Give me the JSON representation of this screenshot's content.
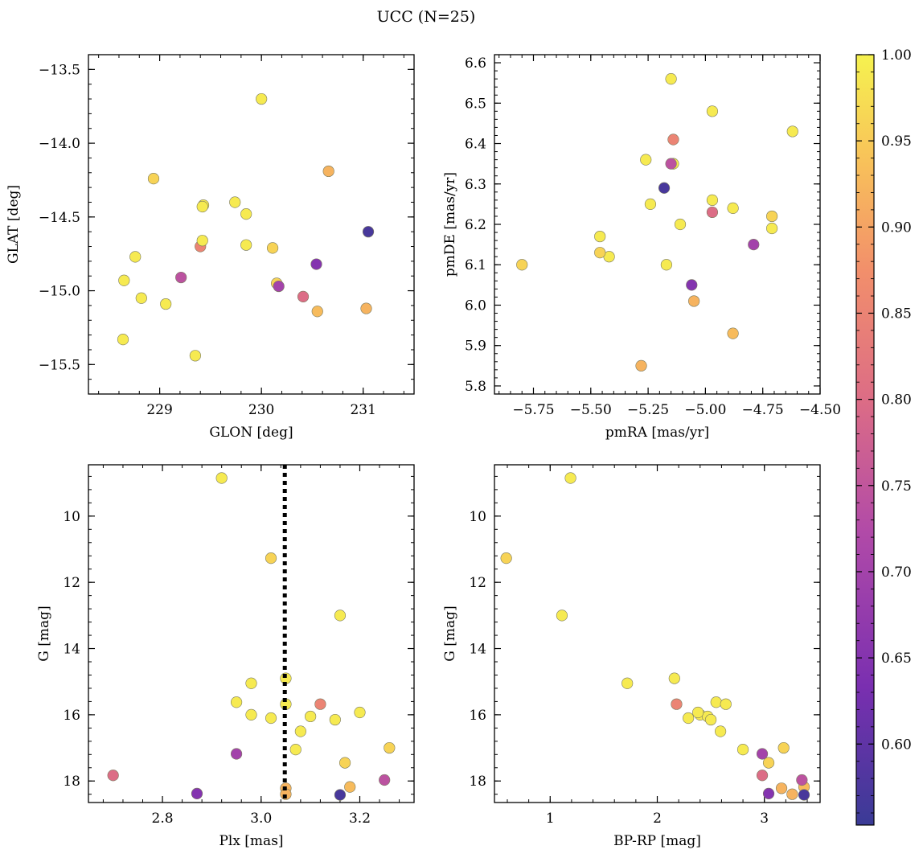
{
  "title": "UCC (N=25)",
  "colorbar": {
    "min": 0.553,
    "max": 1.0,
    "ticks": [
      "0.60",
      "0.65",
      "0.70",
      "0.75",
      "0.80",
      "0.85",
      "0.90",
      "0.95",
      "1.00"
    ],
    "tick_values": [
      0.6,
      0.65,
      0.7,
      0.75,
      0.8,
      0.85,
      0.9,
      0.95,
      1.0
    ],
    "colormap": "plasma"
  },
  "stars": {
    "glon": [
      230.0,
      228.94,
      228.76,
      228.65,
      228.82,
      228.64,
      229.06,
      229.35,
      229.4,
      229.42,
      229.43,
      229.42,
      229.74,
      229.85,
      229.85,
      230.11,
      230.15,
      230.17,
      230.41,
      230.54,
      230.66,
      230.55,
      231.03,
      231.05,
      229.21
    ],
    "glat": [
      -13.7,
      -14.24,
      -14.77,
      -14.93,
      -15.05,
      -15.33,
      -15.09,
      -15.44,
      -14.7,
      -14.66,
      -14.42,
      -14.43,
      -14.4,
      -14.48,
      -14.69,
      -14.71,
      -14.95,
      -14.97,
      -15.04,
      -14.82,
      -14.19,
      -15.14,
      -15.12,
      -14.6,
      -14.91
    ],
    "pmra": [
      -4.71,
      -5.8,
      -5.26,
      -5.24,
      -5.14,
      -4.97,
      -4.62,
      -5.15,
      -5.14,
      -4.97,
      -4.88,
      -5.46,
      -5.42,
      -5.17,
      -5.11,
      -5.46,
      -4.71,
      -4.79,
      -4.97,
      -5.06,
      -5.05,
      -4.88,
      -5.28,
      -5.18,
      -5.15
    ],
    "pmde": [
      6.19,
      6.1,
      6.36,
      6.25,
      6.35,
      6.48,
      6.43,
      6.56,
      6.41,
      6.26,
      6.24,
      6.17,
      6.12,
      6.1,
      6.2,
      6.13,
      6.22,
      6.15,
      6.23,
      6.05,
      6.01,
      5.93,
      5.85,
      6.29,
      6.35
    ],
    "plx": [
      2.92,
      3.02,
      3.16,
      3.05,
      2.98,
      2.95,
      2.98,
      3.05,
      3.12,
      3.1,
      3.02,
      3.08,
      3.2,
      3.15,
      3.07,
      3.17,
      3.26,
      2.95,
      2.7,
      2.87,
      3.05,
      3.18,
      3.05,
      3.16,
      3.25
    ],
    "g": [
      8.85,
      11.27,
      13.0,
      14.9,
      15.05,
      15.62,
      16.0,
      15.68,
      15.68,
      16.05,
      16.1,
      16.5,
      15.93,
      16.15,
      17.05,
      17.45,
      17.0,
      17.18,
      17.83,
      18.38,
      18.22,
      18.18,
      18.4,
      18.42,
      17.97
    ],
    "bprp": [
      1.19,
      0.59,
      1.11,
      2.16,
      1.72,
      2.55,
      2.4,
      2.64,
      2.18,
      2.47,
      2.29,
      2.59,
      2.38,
      2.5,
      2.8,
      3.04,
      3.18,
      2.98,
      2.98,
      3.04,
      3.16,
      3.37,
      3.26,
      3.37,
      3.35
    ],
    "prob": [
      0.99,
      0.96,
      0.99,
      0.99,
      0.99,
      0.99,
      0.99,
      0.99,
      0.85,
      0.99,
      0.99,
      0.99,
      0.99,
      0.99,
      0.99,
      0.96,
      0.96,
      0.7,
      0.8,
      0.65,
      0.92,
      0.93,
      0.92,
      0.57,
      0.74
    ]
  },
  "chart_data": [
    {
      "type": "scatter",
      "xlabel": "GLON [deg]",
      "ylabel": "GLAT [deg]",
      "xlim": [
        228.3,
        231.5
      ],
      "ylim": [
        -15.7,
        -13.4
      ],
      "xticks": [
        "229",
        "230",
        "231"
      ],
      "yticks": [
        "−13.5",
        "−14.0",
        "−14.5",
        "−15.0",
        "−15.5"
      ],
      "x_key": "glon",
      "y_key": "glat"
    },
    {
      "type": "scatter",
      "xlabel": "pmRA [mas/yr]",
      "ylabel": "pmDE [mas/yr]",
      "xlim": [
        -5.92,
        -4.5
      ],
      "ylim": [
        5.78,
        6.62
      ],
      "xticks": [
        "−5.75",
        "−5.50",
        "−5.25",
        "−5.00",
        "−4.75",
        "−4.50"
      ],
      "yticks": [
        "5.8",
        "5.9",
        "6.0",
        "6.1",
        "6.2",
        "6.3",
        "6.4",
        "6.5",
        "6.6"
      ],
      "x_key": "pmra",
      "y_key": "pmde"
    },
    {
      "type": "scatter",
      "xlabel": "Plx [mas]",
      "ylabel": "G [mag]",
      "xlim": [
        2.65,
        3.31
      ],
      "ylim": [
        18.65,
        8.45
      ],
      "xticks": [
        "2.8",
        "3.0",
        "3.2"
      ],
      "yticks": [
        "10",
        "12",
        "14",
        "16",
        "18"
      ],
      "x_key": "plx",
      "y_key": "g",
      "vline": 3.048
    },
    {
      "type": "scatter",
      "xlabel": "BP-RP [mag]",
      "ylabel": "G [mag]",
      "xlim": [
        0.48,
        3.52
      ],
      "ylim": [
        18.65,
        8.45
      ],
      "xticks": [
        "1",
        "2",
        "3"
      ],
      "yticks": [
        "10",
        "12",
        "14",
        "16",
        "18"
      ],
      "x_key": "bprp",
      "y_key": "g"
    }
  ]
}
